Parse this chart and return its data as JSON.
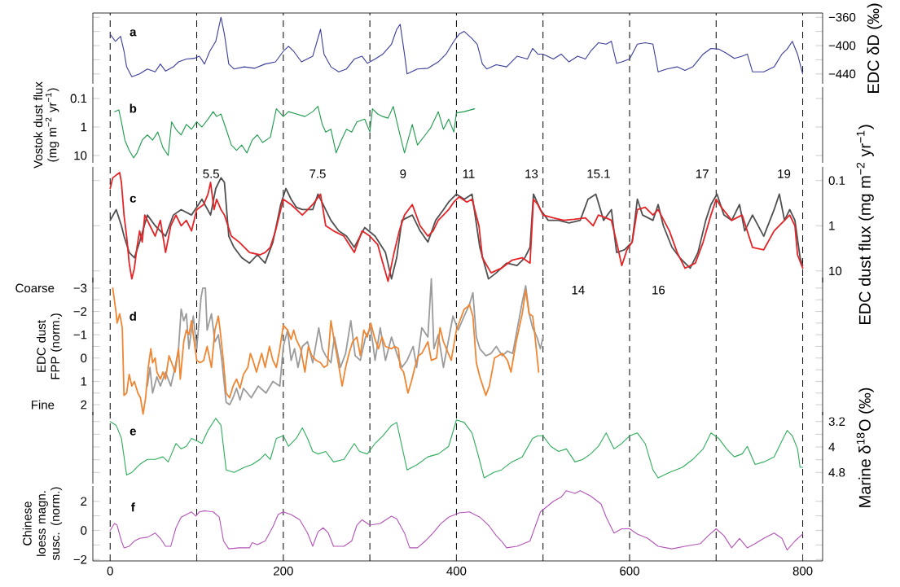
{
  "chart_data": [
    {
      "type": "line",
      "annotations": [
        "a"
      ],
      "y2label": "EDC δD (‰)",
      "xlim": [
        -20,
        823
      ],
      "xticks": [
        0,
        {
          "value": 100,
          "label": null
        },
        200,
        {
          "value": 300,
          "label": null
        },
        400,
        {
          "value": 500,
          "label": null
        },
        600,
        {
          "value": 700,
          "label": null
        },
        800
      ],
      "y2lim": [
        -454,
        -354
      ],
      "y2ticks": [
        {
          "value": -360,
          "label": "−360"
        },
        {
          "value": -380,
          "label": null
        },
        {
          "value": -400,
          "label": "−400"
        },
        {
          "value": -420,
          "label": null
        },
        {
          "value": -440,
          "label": "−440"
        }
      ],
      "tick_labels": "y",
      "grid": "x",
      "series": [
        {
          "color": "#3a3d99",
          "axis": "y2",
          "x": [
            0,
            6,
            12,
            16,
            19,
            25,
            34,
            43,
            52,
            58,
            64,
            73,
            79,
            88,
            97,
            103,
            109,
            115,
            122,
            128,
            132,
            137,
            143,
            155,
            167,
            179,
            191,
            200,
            206,
            212,
            221,
            234,
            243,
            247,
            255,
            264,
            273,
            282,
            291,
            297,
            306,
            315,
            325,
            331,
            335,
            340,
            343,
            355,
            367,
            379,
            388,
            397,
            403,
            409,
            418,
            424,
            430,
            435,
            446,
            458,
            470,
            482,
            488,
            494,
            500,
            512,
            521,
            530,
            540,
            549,
            555,
            564,
            573,
            579,
            585,
            591,
            600,
            609,
            618,
            627,
            633,
            643,
            655,
            664,
            673,
            685,
            694,
            703,
            712,
            721,
            730,
            736,
            742,
            755,
            767,
            776,
            782,
            788,
            794,
            800
          ],
          "values": [
            -384,
            -394,
            -387,
            -408,
            -430,
            -444,
            -440,
            -433,
            -437,
            -426,
            -436,
            -430,
            -423,
            -419,
            -418,
            -415,
            -426,
            -408,
            -394,
            -360,
            -384,
            -426,
            -433,
            -430,
            -432,
            -426,
            -423,
            -408,
            -401,
            -408,
            -423,
            -415,
            -377,
            -412,
            -430,
            -437,
            -433,
            -419,
            -415,
            -425,
            -419,
            -412,
            -398,
            -377,
            -370,
            -412,
            -440,
            -433,
            -432,
            -423,
            -412,
            -394,
            -384,
            -380,
            -390,
            -398,
            -426,
            -433,
            -427,
            -430,
            -415,
            -419,
            -404,
            -412,
            -412,
            -419,
            -412,
            -423,
            -415,
            -419,
            -408,
            -396,
            -398,
            -394,
            -425,
            -423,
            -419,
            -398,
            -396,
            -398,
            -437,
            -433,
            -430,
            -435,
            -430,
            -412,
            -404,
            -405,
            -411,
            -418,
            -415,
            -412,
            -437,
            -437,
            -430,
            -412,
            -405,
            -394,
            -412,
            -440
          ]
        }
      ]
    },
    {
      "type": "line",
      "annotations": [
        "b"
      ],
      "ylabel": "Vostok dust flux (mg m$^{−2}$ yr$^{−1}$)",
      "log": "y",
      "xlim": [
        -20,
        823
      ],
      "xticks": [
        0,
        {
          "value": 100,
          "label": null
        },
        200,
        {
          "value": 300,
          "label": null
        },
        400,
        {
          "value": 500,
          "label": null
        },
        600,
        {
          "value": 700,
          "label": null
        },
        800
      ],
      "ylim": [
        18,
        0.04
      ],
      "yticks": [
        0.1,
        1,
        10
      ],
      "tick_labels": "y",
      "grid": "x",
      "series": [
        {
          "color": "#1d9a4c",
          "x": [
            5,
            10,
            13,
            17,
            22,
            27,
            31,
            37,
            43,
            49,
            55,
            61,
            67,
            71,
            76,
            82,
            88,
            94,
            100,
            106,
            113,
            119,
            123,
            128,
            134,
            140,
            146,
            152,
            158,
            164,
            170,
            176,
            185,
            192,
            200,
            206,
            215,
            225,
            234,
            240,
            245,
            249,
            255,
            261,
            267,
            273,
            279,
            285,
            294,
            300,
            303,
            309,
            315,
            321,
            327,
            334,
            340,
            344,
            349,
            355,
            364,
            370,
            379,
            385,
            391,
            397,
            400,
            409,
            421
          ],
          "values": [
            0.29,
            0.25,
            0.66,
            2.9,
            6.6,
            12,
            8.1,
            2.9,
            1.9,
            2.9,
            1.5,
            5.3,
            10,
            0.66,
            1.2,
            1.9,
            0.81,
            1.2,
            0.66,
            1,
            0.53,
            0.29,
            0.43,
            0.35,
            1.2,
            4.3,
            6.6,
            4.3,
            8.1,
            2.9,
            1.9,
            3.5,
            2.3,
            0.23,
            0.43,
            0.29,
            0.35,
            0.43,
            0.29,
            0.19,
            0.81,
            1.5,
            1.2,
            8.1,
            2.9,
            1.2,
            1.5,
            0.66,
            0.53,
            1.5,
            0.23,
            0.35,
            0.43,
            0.49,
            0.19,
            1.5,
            8.1,
            2.9,
            0.81,
            4.3,
            1.9,
            1.1,
            0.29,
            1.2,
            0.53,
            1.5,
            0.32,
            0.29,
            0.23
          ]
        }
      ]
    },
    {
      "type": "line",
      "annotations": [
        "c",
        "5.5",
        "7.5",
        "9",
        "11",
        "13",
        "15.1",
        "17",
        "19",
        "14",
        "16"
      ],
      "y2label": "EDC dust flux (mg m$^{−2}$ yr$^{−1}$)",
      "log": "y2",
      "xlim": [
        -20,
        823
      ],
      "xticks": [
        0,
        {
          "value": 100,
          "label": null
        },
        200,
        {
          "value": 300,
          "label": null
        },
        400,
        {
          "value": 500,
          "label": null
        },
        600,
        {
          "value": 700,
          "label": null
        },
        800
      ],
      "y2lim": [
        18,
        0.05
      ],
      "y2ticks": [
        0.1,
        1,
        10
      ],
      "tick_labels": "y",
      "grid": "x",
      "series": [
        {
          "color": "#505050",
          "axis": "y2",
          "x": [
            0,
            7,
            13,
            16,
            22,
            28,
            34,
            43,
            52,
            64,
            73,
            82,
            94,
            106,
            116,
            122,
            128,
            132,
            137,
            143,
            152,
            161,
            170,
            179,
            188,
            197,
            203,
            209,
            215,
            222,
            234,
            240,
            246,
            255,
            264,
            273,
            282,
            294,
            306,
            318,
            325,
            331,
            337,
            349,
            358,
            367,
            376,
            385,
            391,
            400,
            409,
            418,
            427,
            437,
            446,
            458,
            470,
            479,
            485,
            489,
            497,
            506,
            518,
            530,
            543,
            552,
            561,
            570,
            579,
            585,
            594,
            603,
            609,
            615,
            627,
            633,
            639,
            649,
            658,
            670,
            679,
            688,
            694,
            701,
            709,
            718,
            727,
            733,
            742,
            755,
            767,
            773,
            779,
            785,
            791,
            797,
            800
          ],
          "values": [
            0.76,
            0.44,
            1,
            1.7,
            3.9,
            5.1,
            2.3,
            0.58,
            1,
            1.7,
            0.58,
            0.44,
            0.58,
            0.26,
            0.58,
            0.15,
            0.087,
            0.11,
            1.7,
            3,
            5.1,
            6.7,
            4.4,
            6.7,
            2.3,
            0.34,
            0.15,
            0.26,
            0.39,
            0.44,
            0.44,
            0.2,
            0.34,
            0.76,
            1.3,
            1.7,
            3,
            1.1,
            1.7,
            3.9,
            15,
            5.1,
            0.76,
            0.58,
            1.3,
            2.3,
            0.76,
            0.44,
            0.3,
            0.2,
            0.26,
            0.2,
            3,
            15,
            11,
            6.7,
            7.6,
            5.1,
            3,
            0.2,
            0.44,
            0.76,
            0.76,
            0.87,
            0.76,
            0.26,
            0.2,
            0.76,
            0.44,
            3.9,
            3.4,
            2.3,
            0.26,
            0.58,
            0.76,
            0.34,
            1,
            3,
            5.1,
            8.7,
            3.9,
            0.76,
            0.34,
            0.2,
            0.58,
            0.76,
            0.34,
            1.3,
            0.58,
            1.7,
            0.44,
            0.2,
            0.76,
            0.44,
            0.76,
            5.1,
            7.6
          ]
        },
        {
          "color": "#e42528",
          "axis": "y2",
          "x": [
            0,
            3,
            7,
            11,
            13,
            16,
            19,
            22,
            25,
            28,
            31,
            34,
            37,
            40,
            46,
            52,
            58,
            64,
            70,
            76,
            82,
            88,
            94,
            100,
            108,
            113,
            116,
            120,
            123,
            128,
            132,
            140,
            149,
            161,
            173,
            179,
            185,
            191,
            200,
            209,
            222,
            234,
            243,
            249,
            258,
            270,
            282,
            291,
            300,
            309,
            315,
            321,
            328,
            334,
            340,
            349,
            358,
            367,
            373,
            379,
            385,
            391,
            397,
            403,
            412,
            418,
            426,
            430,
            440,
            452,
            464,
            476,
            485,
            489,
            494,
            500,
            512,
            524,
            536,
            549,
            558,
            564,
            573,
            579,
            585,
            591,
            597,
            603,
            609,
            618,
            627,
            633,
            646,
            655,
            664,
            676,
            685,
            694,
            700,
            706,
            718,
            730,
            742,
            755,
            767,
            779,
            785,
            791,
            794,
            800
          ],
          "values": [
            0.15,
            0.087,
            0.076,
            0.067,
            0.11,
            0.58,
            1.7,
            6.7,
            15,
            8.7,
            3,
            1.3,
            2.3,
            0.58,
            1,
            1.7,
            0.76,
            3.9,
            1,
            0.58,
            1,
            0.76,
            1.3,
            0.44,
            0.34,
            0.2,
            0.11,
            0.44,
            0.26,
            0.44,
            0.58,
            1.7,
            2.3,
            3.9,
            4.4,
            3.9,
            3,
            1.3,
            0.26,
            0.34,
            0.58,
            0.34,
            0.2,
            1,
            1.3,
            1.7,
            3.9,
            1.3,
            1.7,
            2.6,
            6.7,
            17,
            3.9,
            1.3,
            0.58,
            0.34,
            1,
            1.7,
            1.3,
            0.76,
            0.58,
            0.44,
            0.3,
            0.23,
            0.3,
            0.26,
            1,
            5.1,
            11,
            8.7,
            5.8,
            5.1,
            6.7,
            0.26,
            0.34,
            0.58,
            0.67,
            0.76,
            0.72,
            0.67,
            1,
            0.58,
            0.67,
            0.76,
            2.3,
            7.6,
            3.4,
            2.3,
            0.44,
            0.39,
            0.58,
            0.44,
            1.3,
            3.9,
            8.7,
            6.7,
            2.3,
            0.58,
            0.26,
            0.39,
            0.76,
            0.58,
            3,
            3.4,
            1.3,
            0.76,
            0.58,
            1,
            4.4,
            8.7
          ]
        }
      ]
    },
    {
      "type": "line",
      "annotations": [
        "d",
        "Coarse",
        "Fine"
      ],
      "ylabel": "EDC dust FPP (norm.)",
      "xlim": [
        -20,
        823
      ],
      "xticks": [
        0,
        {
          "value": 100,
          "label": null
        },
        200,
        {
          "value": 300,
          "label": null
        },
        400,
        {
          "value": 500,
          "label": null
        },
        600,
        {
          "value": 700,
          "label": null
        },
        800
      ],
      "ylim": [
        2.45,
        -3.45
      ],
      "yticks": [
        {
          "value": -3,
          "label": "−3"
        },
        {
          "value": -2.5,
          "label": null
        },
        {
          "value": -2,
          "label": "−2"
        },
        {
          "value": -1.5,
          "label": null
        },
        {
          "value": -1,
          "label": "−1"
        },
        {
          "value": -0.5,
          "label": null
        },
        0,
        {
          "value": 0.5,
          "label": null
        },
        1,
        {
          "value": 1.5,
          "label": null
        },
        2
      ],
      "tick_labels": "y",
      "grid": "x",
      "series": [
        {
          "color": "#9b9b9b",
          "x": [
            43,
            46,
            49,
            54,
            58,
            64,
            70,
            75,
            79,
            82,
            85,
            88,
            91,
            96,
            100,
            105,
            107,
            110,
            112,
            117,
            121,
            125,
            129,
            134,
            138,
            142,
            146,
            150,
            154,
            163,
            171,
            180,
            188,
            196,
            200,
            205,
            209,
            213,
            217,
            222,
            228,
            234,
            241,
            245,
            249,
            255,
            259,
            266,
            272,
            278,
            283,
            289,
            295,
            301,
            306,
            312,
            318,
            325,
            331,
            337,
            343,
            350,
            354,
            360,
            367,
            371,
            374,
            379,
            385,
            392,
            396,
            402,
            409,
            415,
            419,
            423,
            427,
            434,
            440,
            446,
            453,
            459,
            465,
            469,
            476,
            480,
            484,
            488,
            493,
            497,
            500
          ],
          "values": [
            1.2,
            0.4,
            1.5,
            0.8,
            1.2,
            0.6,
            1.2,
            0.4,
            -0.4,
            -2.1,
            -1.6,
            -1.9,
            -0.4,
            -1.8,
            -0.4,
            -2.6,
            -3,
            -3,
            -1.2,
            -1.9,
            -0.7,
            -1,
            0.1,
            1.9,
            2,
            1.7,
            1.3,
            1.8,
            1.3,
            1.7,
            1.2,
            1.5,
            1,
            1.2,
            -0.5,
            -1.2,
            0.1,
            -0.4,
            0.4,
            -0.5,
            -0.7,
            0.2,
            -1.3,
            -0.4,
            -0.1,
            0.2,
            -0.9,
            0.4,
            -0.2,
            -1.6,
            -0.1,
            0.1,
            -0.9,
            -1.3,
            0.1,
            -1.3,
            0.1,
            -0.9,
            -0.2,
            0.4,
            0.1,
            -0.5,
            0.4,
            -1.3,
            -0.9,
            -3.4,
            -0.4,
            -1,
            0.4,
            -1,
            -1.8,
            -1.2,
            -1.8,
            -2.3,
            -2.8,
            -0.9,
            -0.4,
            -0.1,
            -0.2,
            -0.5,
            -0.1,
            -0.3,
            -0.2,
            -1,
            -2.4,
            -3.1,
            -1.9,
            -1.3,
            -0.9,
            -0.4,
            -0.9
          ]
        },
        {
          "color": "#ef8633",
          "x": [
            3,
            7,
            8,
            11,
            14,
            16,
            19,
            22,
            25,
            28,
            32,
            35,
            38,
            41,
            44,
            47,
            49,
            52,
            54,
            58,
            61,
            64,
            68,
            71,
            75,
            79,
            81,
            85,
            88,
            91,
            94,
            96,
            100,
            104,
            108,
            112,
            117,
            121,
            125,
            127,
            131,
            134,
            138,
            142,
            146,
            150,
            154,
            159,
            162,
            165,
            169,
            172,
            175,
            179,
            184,
            188,
            192,
            196,
            200,
            205,
            209,
            212,
            215,
            220,
            225,
            229,
            233,
            238,
            243,
            247,
            251,
            255,
            259,
            263,
            268,
            272,
            276,
            280,
            285,
            289,
            293,
            297,
            301,
            306,
            310,
            314,
            318,
            325,
            329,
            333,
            335,
            339,
            344,
            348,
            352,
            356,
            360,
            367,
            371,
            377,
            381,
            385,
            394,
            400,
            409,
            413,
            415,
            419,
            423,
            427,
            434,
            438,
            444,
            453,
            459,
            463,
            469,
            476,
            480,
            484,
            488,
            490,
            495
          ],
          "values": [
            -3,
            -1.9,
            -1.5,
            -1.9,
            -1.3,
            1.6,
            1.5,
            0.7,
            1.2,
            1,
            1.5,
            1.7,
            2.4,
            1.7,
            0.4,
            -0.4,
            0.2,
            0,
            0.6,
            0.9,
            0.6,
            0.9,
            -0.1,
            0.2,
            0.6,
            -0.4,
            0.9,
            -0.7,
            -1.2,
            -1,
            -1.6,
            -1,
            0.1,
            0.2,
            0.1,
            -0.5,
            0.4,
            -1.2,
            -1.8,
            -1.2,
            0.2,
            1.5,
            1.7,
            1.2,
            0.9,
            1.3,
            0.7,
            0.4,
            -0.2,
            0.1,
            0.6,
            0.2,
            -0.2,
            0.4,
            -0.5,
            0.1,
            0.4,
            -0.4,
            -1.4,
            -1.2,
            -0.8,
            -1.2,
            -0.8,
            -0.4,
            0.6,
            -0.5,
            -0.1,
            0.1,
            0.2,
            0.4,
            0.3,
            -1.6,
            -0.7,
            0.1,
            1.2,
            0.4,
            -0.2,
            -0.7,
            -0.9,
            -0.1,
            -1.2,
            -0.9,
            -1.5,
            -0.8,
            -0.4,
            -0.9,
            -0.5,
            -0.4,
            -0.5,
            -0.4,
            0.4,
            0.6,
            1.5,
            1,
            0.4,
            -0.1,
            -0.2,
            -0.7,
            0.1,
            0,
            -1.3,
            -0.7,
            0.1,
            -1.2,
            -2.1,
            -2.2,
            -2.3,
            -1.8,
            0.2,
            0.8,
            1.6,
            1.2,
            0,
            -0.2,
            0.1,
            0.6,
            -0.7,
            -1.9,
            -2.9,
            -1.9,
            -1.8,
            -1.2,
            0.6
          ]
        }
      ]
    },
    {
      "type": "line",
      "annotations": [
        "e"
      ],
      "y2label": "Marine δ$^{18}$O (‰)",
      "xlim": [
        -20,
        823
      ],
      "xticks": [
        0,
        {
          "value": 100,
          "label": null
        },
        200,
        {
          "value": 300,
          "label": null
        },
        400,
        {
          "value": 500,
          "label": null
        },
        600,
        {
          "value": 700,
          "label": null
        },
        800
      ],
      "y2lim": [
        5.15,
        2.9
      ],
      "y2ticks": [
        3.2,
        {
          "value": 3.6,
          "label": null
        },
        4,
        {
          "value": 4.4,
          "label": null
        },
        4.8
      ],
      "tick_labels": "y",
      "grid": "x",
      "series": [
        {
          "color": "#2fad5c",
          "axis": "y2",
          "x": [
            0,
            7,
            13,
            19,
            25,
            34,
            43,
            52,
            61,
            67,
            76,
            82,
            88,
            94,
            100,
            106,
            113,
            122,
            128,
            134,
            143,
            155,
            164,
            173,
            179,
            185,
            192,
            200,
            206,
            215,
            222,
            228,
            234,
            240,
            249,
            258,
            270,
            282,
            288,
            297,
            306,
            315,
            325,
            331,
            335,
            343,
            355,
            367,
            379,
            391,
            400,
            409,
            418,
            424,
            432,
            443,
            452,
            464,
            476,
            488,
            494,
            500,
            509,
            518,
            527,
            537,
            546,
            555,
            564,
            573,
            582,
            591,
            600,
            609,
            618,
            627,
            633,
            646,
            661,
            673,
            685,
            694,
            703,
            712,
            721,
            730,
            736,
            745,
            755,
            767,
            776,
            782,
            788,
            794,
            797,
            800
          ],
          "values": [
            3.2,
            3.32,
            3.73,
            4.88,
            4.8,
            4.55,
            4.39,
            4.39,
            4.31,
            4.47,
            3.89,
            4.06,
            3.98,
            3.73,
            3.81,
            3.89,
            3.48,
            3.1,
            3.32,
            4.72,
            4.8,
            4.64,
            4.55,
            4.39,
            4.22,
            4.39,
            3.73,
            3.65,
            3.98,
            3.73,
            3.4,
            3.73,
            4.14,
            4.22,
            4.14,
            4.47,
            4.39,
            3.89,
            4.14,
            4.22,
            3.89,
            3.65,
            3.32,
            3.23,
            3.73,
            4.72,
            4.55,
            4.31,
            4.22,
            3.98,
            3.15,
            3.23,
            3.56,
            4.14,
            4.97,
            4.8,
            4.72,
            4.47,
            4.31,
            3.73,
            3.65,
            3.65,
            3.98,
            4.14,
            4.06,
            4.47,
            4.39,
            4.22,
            3.98,
            3.56,
            4.06,
            3.89,
            3.65,
            3.56,
            3.89,
            4.72,
            4.97,
            4.8,
            4.64,
            4.39,
            4.06,
            3.56,
            3.73,
            4.06,
            4.31,
            4.22,
            3.98,
            4.55,
            4.47,
            4.31,
            3.81,
            3.48,
            3.65,
            4.06,
            4.64,
            4.64
          ]
        }
      ]
    },
    {
      "type": "line",
      "annotations": [
        "f"
      ],
      "ylabel": "Chinese loess magn. susc. (norm.)",
      "xlim": [
        -20,
        823
      ],
      "xticks": [
        0,
        {
          "value": 100,
          "label": null
        },
        200,
        {
          "value": 300,
          "label": null
        },
        400,
        {
          "value": 500,
          "label": null
        },
        600,
        {
          "value": 700,
          "label": null
        },
        800
      ],
      "ylim": [
        -2.1,
        3.05
      ],
      "yticks": [
        {
          "value": -2,
          "label": "−2"
        },
        {
          "value": -1,
          "label": null
        },
        0,
        {
          "value": 1,
          "label": null
        },
        2
      ],
      "grid": "x",
      "series": [
        {
          "color": "#b454b8",
          "x": [
            0,
            5,
            8,
            13,
            16,
            22,
            28,
            34,
            43,
            52,
            58,
            64,
            70,
            76,
            82,
            88,
            94,
            99,
            103,
            109,
            119,
            126,
            131,
            137,
            149,
            161,
            164,
            170,
            179,
            188,
            194,
            200,
            209,
            219,
            228,
            234,
            240,
            246,
            252,
            258,
            270,
            279,
            285,
            291,
            300,
            312,
            325,
            331,
            340,
            346,
            355,
            364,
            373,
            382,
            391,
            403,
            415,
            427,
            437,
            446,
            452,
            458,
            470,
            485,
            497,
            512,
            521,
            527,
            537,
            543,
            555,
            567,
            573,
            582,
            591,
            600,
            609,
            621,
            633,
            649,
            664,
            682,
            691,
            700,
            709,
            718,
            727,
            736,
            745,
            755,
            767,
            776,
            782,
            791,
            800
          ],
          "values": [
            0,
            0.47,
            0.36,
            -0.73,
            -1.2,
            -1.09,
            -0.73,
            -0.55,
            -0.47,
            -0.18,
            -0.55,
            -1.09,
            -1.09,
            0.18,
            0.91,
            1.09,
            1.27,
            0.98,
            1.27,
            1.35,
            1.27,
            0.91,
            -0.73,
            -1.27,
            -1.2,
            -1.2,
            -0.84,
            -0.98,
            -0.73,
            0.25,
            1.09,
            1.27,
            1.09,
            0.73,
            -0.18,
            -1.09,
            -0.11,
            0.18,
            -0.18,
            -1.09,
            -1.09,
            -0.73,
            0.36,
            0.73,
            0.36,
            0.47,
            0.98,
            0.8,
            -0.18,
            -1.2,
            -1.2,
            -0.73,
            -0.18,
            0.47,
            0.91,
            1.2,
            1.27,
            0.91,
            0.36,
            -0.36,
            -0.73,
            -1.2,
            -1.09,
            -0.73,
            1.27,
            2,
            2.29,
            2.73,
            2.55,
            2.73,
            2.36,
            1.82,
            0.91,
            -0.18,
            0.11,
            0.11,
            -0.25,
            -0.55,
            -1.09,
            -1.27,
            -1.09,
            -0.91,
            -0.36,
            0.11,
            -0.36,
            -1.2,
            -0.55,
            -1.2,
            -0.91,
            -0.55,
            -0.18,
            -0.55,
            -1.35,
            -0.73,
            -0.25
          ]
        }
      ]
    }
  ]
}
